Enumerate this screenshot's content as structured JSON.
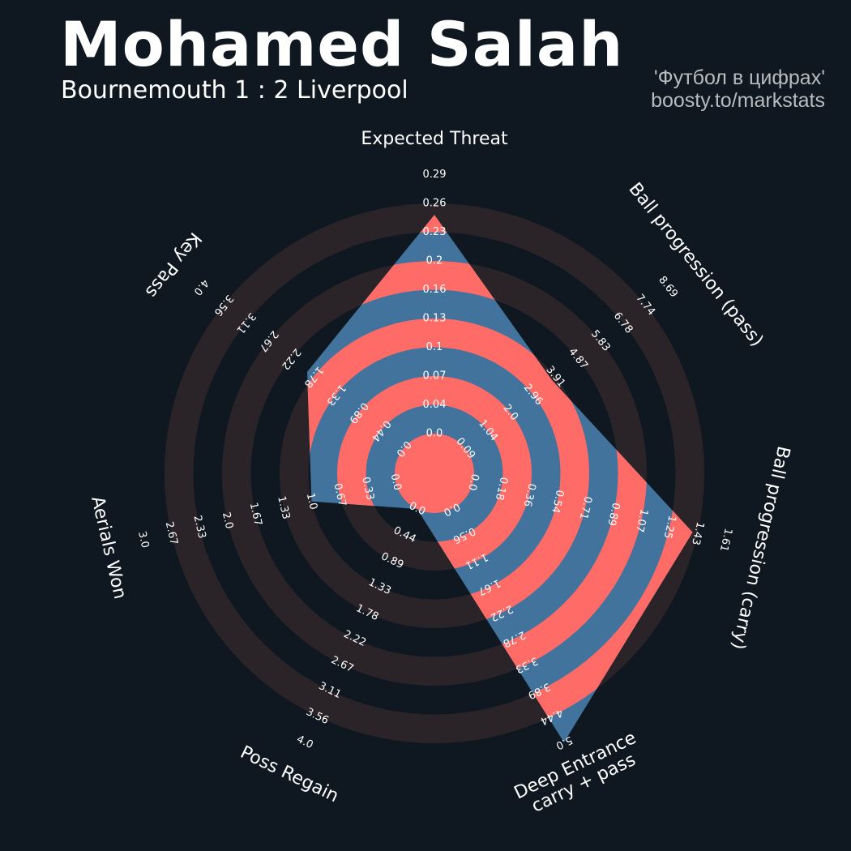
{
  "header": {
    "title": "Mohamed Salah",
    "subtitle": "Bournemouth 1 : 2 Liverpool",
    "credit_line1": "'Футбол в цифрах'",
    "credit_line2": "boosty.to/markstats"
  },
  "colors": {
    "background": "#0f1820",
    "ring_band": "#2a2429",
    "player_blue": "#41739d",
    "player_red": "#ff6b67",
    "text": "#ffffff"
  },
  "chart_data": {
    "type": "radar",
    "title": "Mohamed Salah",
    "subtitle": "Bournemouth 1 : 2 Liverpool",
    "axes": [
      {
        "label": "Expected Threat",
        "label_line2": "",
        "min": 0,
        "max": 0.29,
        "ticks": [
          "0.0",
          "0.04",
          "0.07",
          "0.1",
          "0.13",
          "0.16",
          "0.2",
          "0.23",
          "0.26",
          "0.29"
        ]
      },
      {
        "label": "Ball progression (pass)",
        "label_line2": "",
        "min": 0,
        "max": 8.69,
        "ticks": [
          "0.09",
          "1.04",
          "2.0",
          "2.96",
          "3.91",
          "4.87",
          "5.83",
          "6.78",
          "7.74",
          "8.69"
        ]
      },
      {
        "label": "Ball progression (carry)",
        "label_line2": "",
        "min": 0,
        "max": 1.61,
        "ticks": [
          "0.0",
          "0.18",
          "0.36",
          "0.54",
          "0.71",
          "0.89",
          "1.07",
          "1.25",
          "1.43",
          "1.61"
        ]
      },
      {
        "label": "Deep Entrance",
        "label_line2": "carry + pass",
        "min": 0,
        "max": 5.0,
        "ticks": [
          "0.0",
          "0.56",
          "1.11",
          "1.67",
          "2.22",
          "2.78",
          "3.33",
          "3.89",
          "4.44",
          "5.0"
        ]
      },
      {
        "label": "Poss Regain",
        "label_line2": "",
        "min": 0,
        "max": 4.0,
        "ticks": [
          "0.0",
          "0.44",
          "0.89",
          "1.33",
          "1.78",
          "2.22",
          "2.67",
          "3.11",
          "3.56",
          "4.0"
        ]
      },
      {
        "label": "Aerials Won",
        "label_line2": "",
        "min": 0,
        "max": 3.0,
        "ticks": [
          "0.0",
          "0.33",
          "0.67",
          "1.0",
          "1.33",
          "1.67",
          "2.0",
          "2.33",
          "2.67",
          "3.0"
        ]
      },
      {
        "label": "Key Pass",
        "label_line2": "",
        "min": 0,
        "max": 4.0,
        "ticks": [
          "0.0",
          "0.44",
          "0.89",
          "1.33",
          "1.78",
          "2.22",
          "2.67",
          "3.11",
          "3.56",
          "4.0"
        ]
      }
    ],
    "values": [
      0.245,
      3.7,
      1.4,
      5.0,
      0.0,
      1.0,
      1.9
    ]
  }
}
